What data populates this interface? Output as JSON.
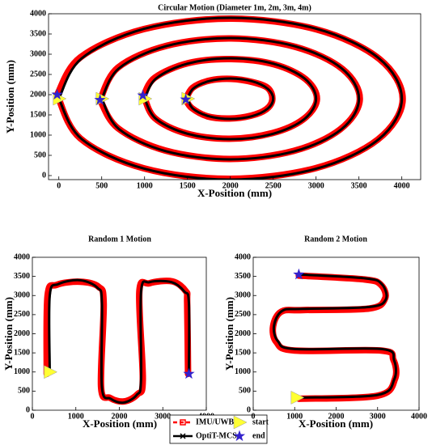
{
  "chart_data": [
    {
      "type": "line",
      "title": "Circular Motion (Diameter 1m, 2m, 3m, 4m)",
      "x_label": "X-Position (mm)",
      "y_label": "Y-Position (mm)",
      "xlim": [
        -120,
        4220
      ],
      "ylim": [
        -100,
        4000
      ],
      "xticks": [
        0,
        500,
        1000,
        1500,
        2000,
        2500,
        3000,
        3500,
        4000
      ],
      "yticks": [
        0,
        500,
        1000,
        1500,
        2000,
        2500,
        3000,
        3500,
        4000
      ],
      "series": [
        {
          "color": "#ff0000",
          "width": 8,
          "linestyle": "dashed",
          "marker": "square",
          "x": [
            1480,
            1560,
            1760,
            2010,
            2260,
            2440,
            2490,
            2420,
            2240,
            1990,
            1740,
            1550,
            1480,
            null,
            990,
            1120,
            1510,
            2010,
            2510,
            2880,
            3010,
            2850,
            2490,
            1990,
            1490,
            1120,
            990,
            null,
            480,
            690,
            1260,
            2010,
            2760,
            3310,
            3510,
            3280,
            2740,
            1990,
            1240,
            690,
            480,
            null,
            -20,
            250,
            990,
            2010,
            3010,
            3740,
            4010,
            3720,
            2990,
            1990,
            990,
            250,
            -20
          ],
          "values": [
            1880,
            2170,
            2350,
            2390,
            2310,
            2160,
            1880,
            1640,
            1480,
            1410,
            1460,
            1670,
            1880,
            null,
            1980,
            2420,
            2780,
            2880,
            2750,
            2380,
            1880,
            1390,
            1050,
            910,
            1040,
            1420,
            1980,
            null,
            1870,
            2670,
            3210,
            3390,
            3180,
            2630,
            1880,
            1140,
            610,
            410,
            620,
            1170,
            1870,
            null,
            2000,
            2920,
            3620,
            3880,
            3610,
            2880,
            1880,
            890,
            180,
            -80,
            180,
            920,
            2000
          ]
        },
        {
          "color": "#000000",
          "width": 3,
          "linestyle": "solid",
          "marker": "x",
          "x": [
            1500,
            1567,
            1750,
            2000,
            2250,
            2433,
            2500,
            2433,
            2250,
            2000,
            1750,
            1567,
            1500,
            null,
            1000,
            1134,
            1500,
            2000,
            2500,
            2866,
            3000,
            2866,
            2500,
            2000,
            1500,
            1134,
            1000,
            null,
            500,
            701,
            1250,
            2000,
            2750,
            3299,
            3500,
            3299,
            2750,
            2000,
            1250,
            701,
            500,
            null,
            0,
            268,
            1000,
            2000,
            3000,
            3732,
            4000,
            3732,
            3000,
            2000,
            1000,
            268,
            0
          ],
          "values": [
            1900,
            2150,
            2333,
            2400,
            2333,
            2150,
            1900,
            1650,
            1467,
            1400,
            1467,
            1650,
            1900,
            null,
            1900,
            2400,
            2766,
            2900,
            2766,
            2400,
            1900,
            1400,
            1034,
            900,
            1034,
            1400,
            1900,
            null,
            1900,
            2650,
            3199,
            3400,
            3199,
            2650,
            1900,
            1150,
            601,
            400,
            601,
            1150,
            1900,
            null,
            1900,
            2900,
            3632,
            3900,
            3632,
            2900,
            1900,
            900,
            168,
            -100,
            168,
            900,
            1900
          ]
        },
        {
          "color": "#ffff33",
          "marker": "triangle",
          "x": [
            1500,
            1000,
            500,
            0
          ],
          "values": [
            1900,
            1900,
            1900,
            1900
          ]
        },
        {
          "color": "#3322cc",
          "marker": "star",
          "x": [
            1480,
            980,
            480,
            -20
          ],
          "values": [
            1880,
            1980,
            1870,
            2000
          ]
        }
      ]
    },
    {
      "type": "line",
      "title": "Random 1 Motion",
      "x_label": "X-Position (mm)",
      "y_label": "Y-Position (mm)",
      "xlim": [
        0,
        4000
      ],
      "ylim": [
        0,
        4000
      ],
      "xticks": [
        0,
        1000,
        2000,
        3000,
        4000
      ],
      "yticks": [
        0,
        500,
        1000,
        1500,
        2000,
        2500,
        3000,
        3500,
        4000
      ],
      "legend": "below",
      "series": [
        {
          "name": "IMU/UWB",
          "color": "#ff0000",
          "width": 8,
          "linestyle": "dashed",
          "marker": "square",
          "x": [
            330,
            350,
            560,
            1100,
            1520,
            1640,
            1580,
            1790,
            2110,
            2420,
            2540,
            2460,
            2690,
            3220,
            3530,
            3560,
            3580
          ],
          "values": [
            950,
            3000,
            3280,
            3360,
            3230,
            2800,
            600,
            320,
            230,
            420,
            800,
            3100,
            3320,
            3370,
            3110,
            2800,
            950
          ]
        },
        {
          "name": "OptiT-MCS",
          "color": "#000000",
          "width": 3,
          "linestyle": "solid",
          "marker": "x",
          "x": [
            400,
            400,
            600,
            1100,
            1500,
            1600,
            1600,
            1800,
            2100,
            2400,
            2500,
            2500,
            2700,
            3200,
            3500,
            3600,
            3600
          ],
          "values": [
            1000,
            3000,
            3300,
            3400,
            3200,
            2800,
            600,
            300,
            200,
            400,
            800,
            3100,
            3350,
            3350,
            3100,
            2800,
            950
          ]
        },
        {
          "name": "start",
          "color": "#ffff33",
          "marker": "triangle",
          "x": [
            400
          ],
          "values": [
            1000
          ]
        },
        {
          "name": "end",
          "color": "#3322cc",
          "marker": "star",
          "x": [
            3600
          ],
          "values": [
            950
          ]
        }
      ]
    },
    {
      "type": "line",
      "title": "Random 2 Motion",
      "x_label": "X-Position (mm)",
      "y_label": "Y-Position (mm)",
      "xlim": [
        0,
        4000
      ],
      "ylim": [
        0,
        4000
      ],
      "xticks": [
        0,
        1000,
        2000,
        3000,
        4000
      ],
      "yticks": [
        0,
        500,
        1000,
        1500,
        2000,
        2500,
        3000,
        3500,
        4000
      ],
      "series": [
        {
          "color": "#ff0000",
          "width": 8,
          "linestyle": "dashed",
          "marker": "square",
          "x": [
            1100,
            3000,
            3420,
            3380,
            3080,
            1000,
            560,
            480,
            680,
            1200,
            2800,
            3180,
            3080,
            2680,
            1100
          ],
          "values": [
            300,
            380,
            820,
            1320,
            1560,
            1560,
            1780,
            2200,
            2580,
            2620,
            2660,
            2920,
            3280,
            3420,
            3520
          ]
        },
        {
          "color": "#000000",
          "width": 3,
          "linestyle": "solid",
          "marker": "x",
          "x": [
            1100,
            3000,
            3400,
            3400,
            3100,
            1000,
            600,
            500,
            700,
            1200,
            2800,
            3200,
            3100,
            2700,
            1100
          ],
          "values": [
            330,
            400,
            800,
            1300,
            1600,
            1600,
            1800,
            2200,
            2600,
            2650,
            2700,
            2900,
            3300,
            3450,
            3550
          ]
        },
        {
          "color": "#ffff33",
          "marker": "triangle",
          "x": [
            1050
          ],
          "values": [
            330
          ]
        },
        {
          "color": "#3322cc",
          "marker": "star",
          "x": [
            1100
          ],
          "values": [
            3550
          ]
        }
      ]
    }
  ]
}
